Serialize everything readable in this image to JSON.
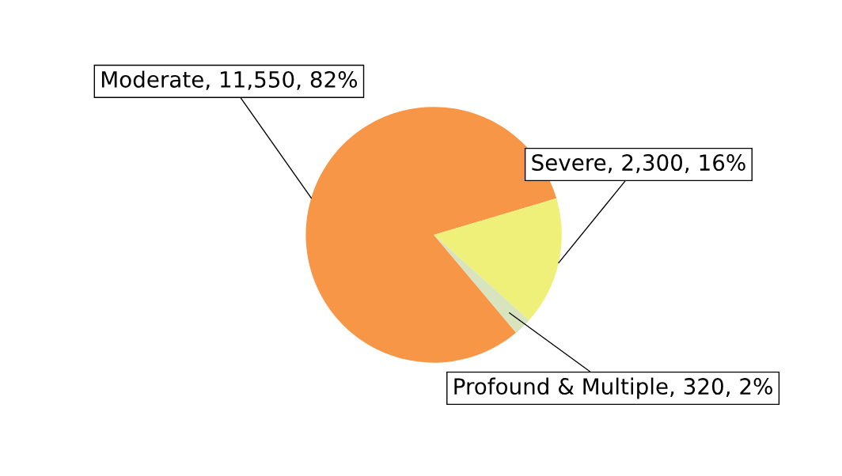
{
  "chart_data": {
    "type": "pie",
    "categories": [
      "Moderate",
      "Severe",
      "Profound & Multiple"
    ],
    "values": [
      11550,
      2300,
      320
    ],
    "value_labels": [
      "11,550, 82%",
      "2,300, 16%",
      "320, 2%"
    ],
    "colors": [
      "#f79646",
      "#eef07a",
      "#d7e4bd"
    ],
    "legend": false
  }
}
